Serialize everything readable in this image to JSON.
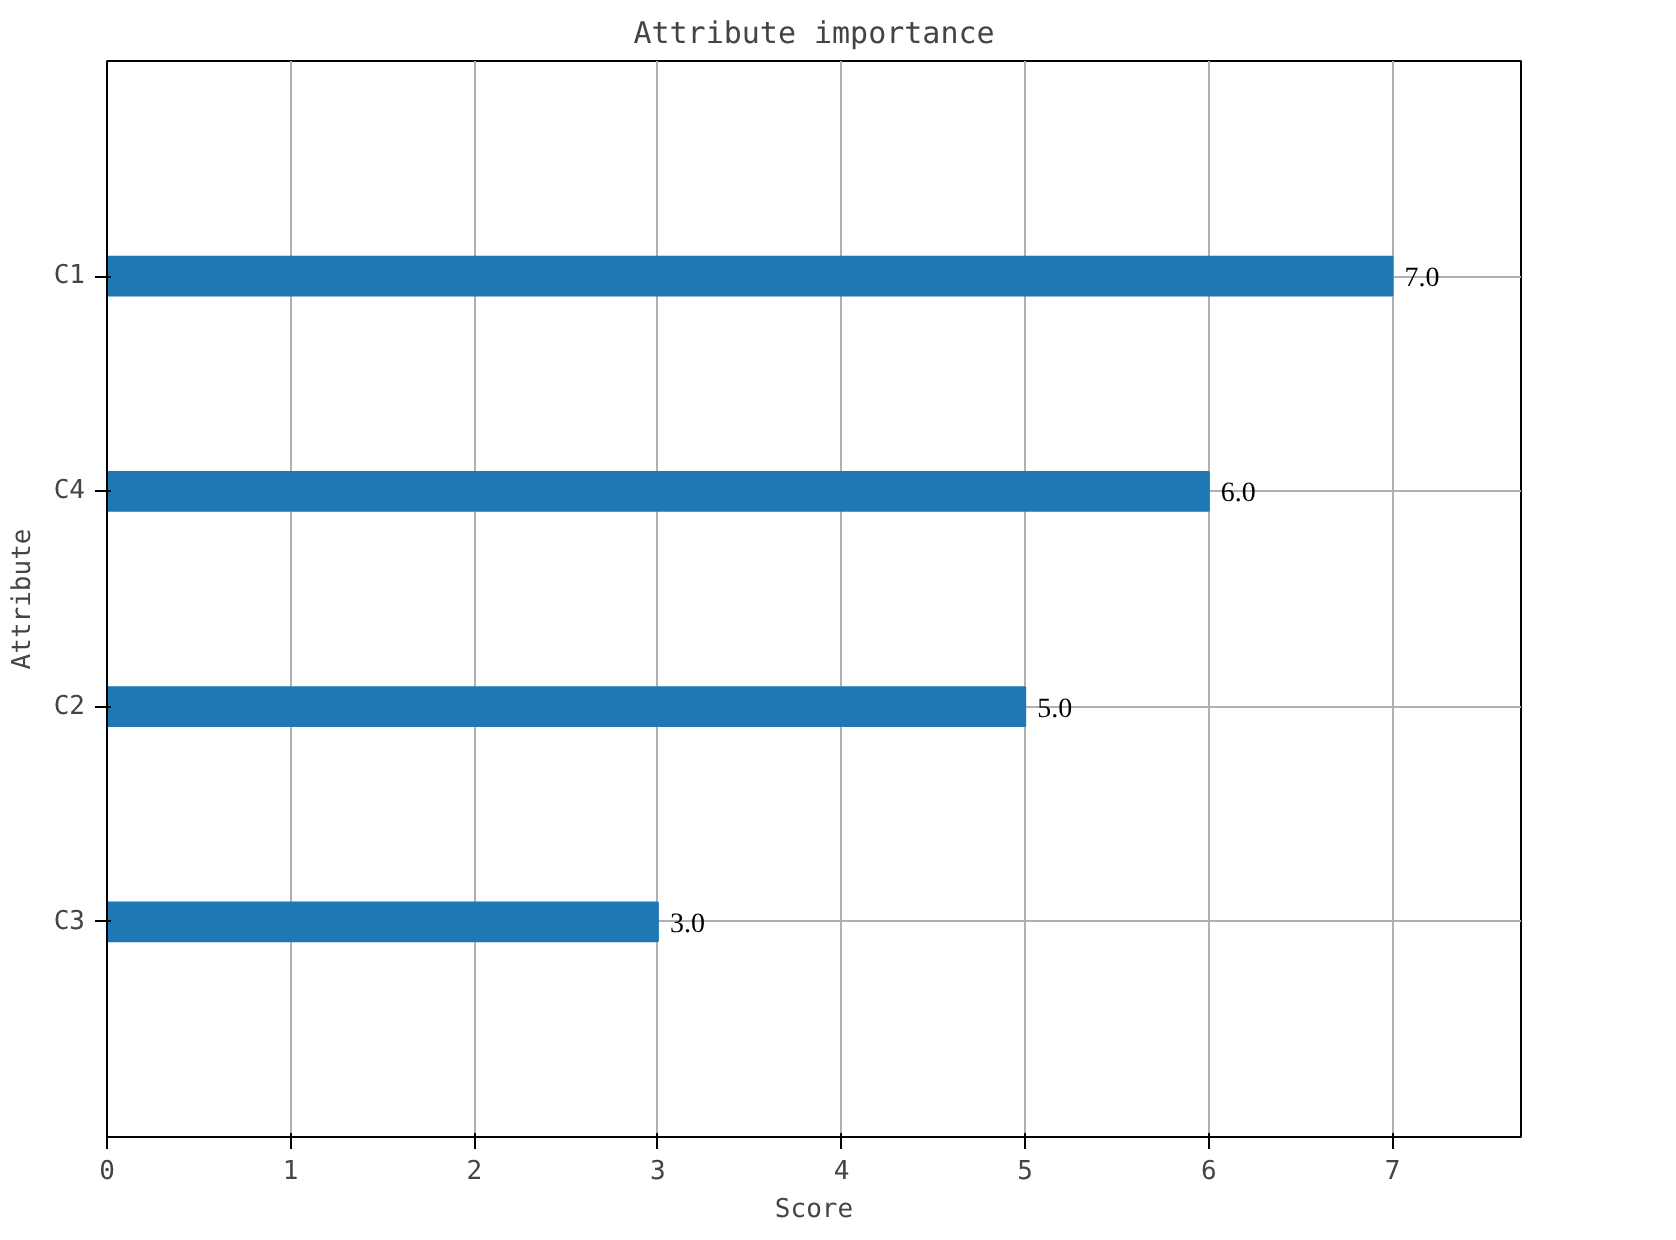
{
  "chart_data": {
    "type": "bar",
    "orientation": "horizontal",
    "title": "Attribute importance",
    "xlabel": "Score",
    "ylabel": "Attribute",
    "categories": [
      "C1",
      "C4",
      "C2",
      "C3"
    ],
    "values": [
      7,
      6,
      5,
      3
    ],
    "value_labels": [
      "7.0",
      "6.0",
      "5.0",
      "3.0"
    ],
    "color": "#1f77b4",
    "xlim": [
      0,
      7.7
    ],
    "xticks": [
      0,
      1,
      2,
      3,
      4,
      5,
      6,
      7
    ],
    "grid": true
  }
}
